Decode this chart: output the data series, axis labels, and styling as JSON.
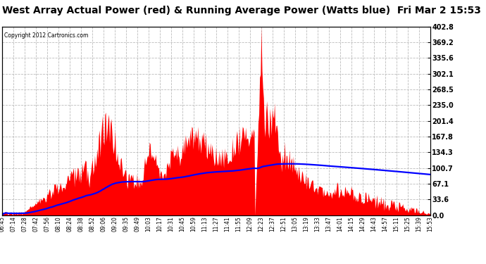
{
  "title": "West Array Actual Power (red) & Running Average Power (Watts blue)  Fri Mar 2 15:53",
  "copyright": "Copyright 2012 Cartronics.com",
  "yticks": [
    0.0,
    33.6,
    67.1,
    100.7,
    134.3,
    167.8,
    201.4,
    235.0,
    268.5,
    302.1,
    335.6,
    369.2,
    402.8
  ],
  "ymax": 402.8,
  "bg_color": "#ffffff",
  "bar_color": "red",
  "avg_color": "blue",
  "grid_color": "#bbbbbb",
  "title_fontsize": 10,
  "xtick_labels": [
    "06:45",
    "07:14",
    "07:28",
    "07:42",
    "07:56",
    "08:10",
    "08:24",
    "08:38",
    "08:52",
    "09:06",
    "09:20",
    "09:35",
    "09:49",
    "10:03",
    "10:17",
    "10:31",
    "10:45",
    "10:59",
    "11:13",
    "11:27",
    "11:41",
    "11:55",
    "12:09",
    "12:23",
    "12:37",
    "12:51",
    "13:05",
    "13:19",
    "13:33",
    "13:47",
    "14:01",
    "14:15",
    "14:29",
    "14:43",
    "14:57",
    "15:11",
    "15:25",
    "15:39",
    "15:53"
  ]
}
